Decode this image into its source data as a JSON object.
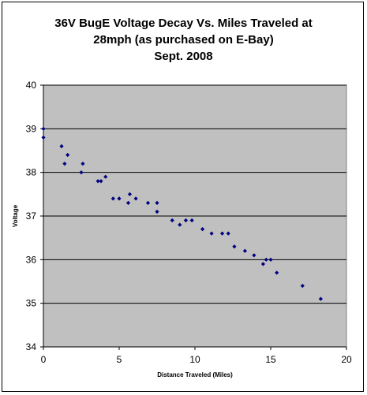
{
  "chart_data": {
    "type": "scatter",
    "title_lines": [
      "36V BugE Voltage Decay Vs. Miles Traveled at",
      "28mph (as purchased on E-Bay)",
      "Sept. 2008"
    ],
    "xlabel": "Distance Traveled (Miles)",
    "ylabel": "Voltage",
    "xlim": [
      0,
      20
    ],
    "ylim": [
      34,
      40
    ],
    "xticks": [
      0,
      5,
      10,
      15,
      20
    ],
    "yticks": [
      34,
      35,
      36,
      37,
      38,
      39,
      40
    ],
    "grid": "horizontal",
    "plot_background": "#c0c0c0",
    "marker_color": "#000080",
    "points": [
      {
        "x": 0.0,
        "y": 39.0
      },
      {
        "x": 0.0,
        "y": 38.8
      },
      {
        "x": 1.2,
        "y": 38.6
      },
      {
        "x": 1.6,
        "y": 38.4
      },
      {
        "x": 1.4,
        "y": 38.2
      },
      {
        "x": 2.6,
        "y": 38.2
      },
      {
        "x": 2.5,
        "y": 38.0
      },
      {
        "x": 4.1,
        "y": 37.9
      },
      {
        "x": 3.6,
        "y": 37.8
      },
      {
        "x": 3.8,
        "y": 37.8
      },
      {
        "x": 5.7,
        "y": 37.5
      },
      {
        "x": 4.6,
        "y": 37.4
      },
      {
        "x": 5.0,
        "y": 37.4
      },
      {
        "x": 6.1,
        "y": 37.4
      },
      {
        "x": 5.6,
        "y": 37.3
      },
      {
        "x": 6.9,
        "y": 37.3
      },
      {
        "x": 7.5,
        "y": 37.3
      },
      {
        "x": 7.5,
        "y": 37.1
      },
      {
        "x": 8.5,
        "y": 36.9
      },
      {
        "x": 9.4,
        "y": 36.9
      },
      {
        "x": 9.8,
        "y": 36.9
      },
      {
        "x": 9.0,
        "y": 36.8
      },
      {
        "x": 10.5,
        "y": 36.7
      },
      {
        "x": 11.1,
        "y": 36.6
      },
      {
        "x": 11.8,
        "y": 36.6
      },
      {
        "x": 12.2,
        "y": 36.6
      },
      {
        "x": 12.6,
        "y": 36.3
      },
      {
        "x": 13.3,
        "y": 36.2
      },
      {
        "x": 13.9,
        "y": 36.1
      },
      {
        "x": 14.7,
        "y": 36.0
      },
      {
        "x": 15.0,
        "y": 36.0
      },
      {
        "x": 14.5,
        "y": 35.9
      },
      {
        "x": 15.4,
        "y": 35.7
      },
      {
        "x": 17.1,
        "y": 35.4
      },
      {
        "x": 18.3,
        "y": 35.1
      }
    ]
  }
}
